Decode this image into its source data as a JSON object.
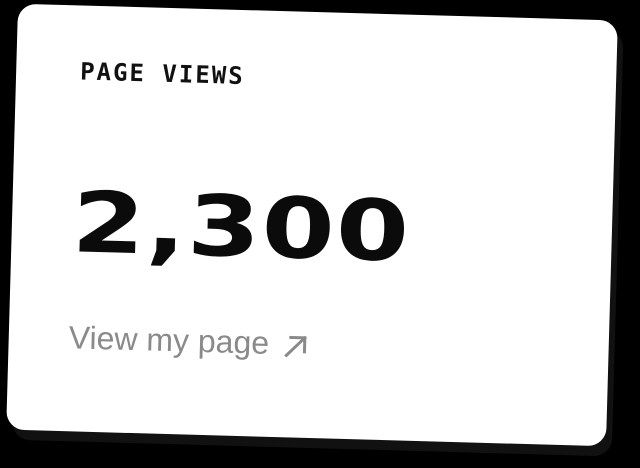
{
  "widget": {
    "title": "PAGE VIEWS",
    "value": "2,300",
    "link_label": "View my page",
    "link_icon": "arrow-up-right-icon"
  },
  "colors": {
    "background": "#000000",
    "card": "#ffffff",
    "text": "#0b0b0b",
    "muted": "#8a8a8a"
  }
}
